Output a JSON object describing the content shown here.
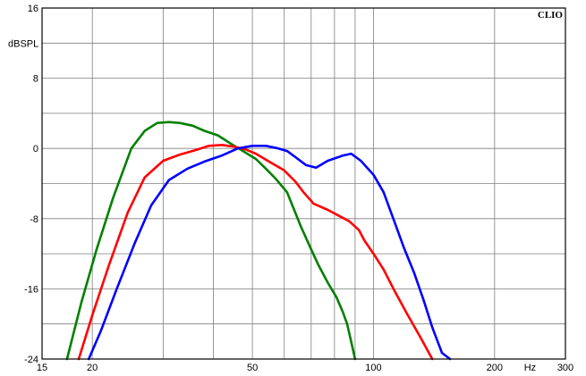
{
  "chart_data": {
    "type": "line",
    "brand": "CLIO",
    "ylabel": "dBSPL",
    "xunit": "Hz",
    "xscale": "log",
    "xlim": [
      15,
      300
    ],
    "ylim": [
      -24,
      16
    ],
    "grid": true,
    "x_gridlines": [
      20,
      30,
      40,
      50,
      60,
      70,
      80,
      90,
      100,
      200
    ],
    "y_gridlines": [
      -20,
      -16,
      -12,
      -8,
      -4,
      0,
      4,
      8,
      12
    ],
    "x_tick_labels": [
      {
        "value": 15,
        "label": "15"
      },
      {
        "value": 20,
        "label": "20"
      },
      {
        "value": 50,
        "label": "50"
      },
      {
        "value": 100,
        "label": "100"
      },
      {
        "value": 200,
        "label": "200"
      },
      {
        "value": 300,
        "label": "300"
      }
    ],
    "y_tick_labels": [
      {
        "value": 16,
        "label": "16"
      },
      {
        "value": 8,
        "label": "8"
      },
      {
        "value": 0,
        "label": "0"
      },
      {
        "value": -8,
        "label": "-8"
      },
      {
        "value": -16,
        "label": "-16"
      },
      {
        "value": -24,
        "label": "-24"
      }
    ],
    "series": [
      {
        "color": "#008000",
        "points": [
          [
            17.3,
            -24
          ],
          [
            18.8,
            -17.5
          ],
          [
            20.5,
            -11.5
          ],
          [
            22.5,
            -5.7
          ],
          [
            25,
            0
          ],
          [
            27,
            2
          ],
          [
            29,
            2.9
          ],
          [
            31,
            3
          ],
          [
            33,
            2.9
          ],
          [
            35.5,
            2.6
          ],
          [
            38,
            2
          ],
          [
            41,
            1.5
          ],
          [
            44,
            0.6
          ],
          [
            47,
            -0.2
          ],
          [
            51,
            -1.2
          ],
          [
            54,
            -2.3
          ],
          [
            57,
            -3.4
          ],
          [
            61,
            -5
          ],
          [
            63,
            -6.6
          ],
          [
            66,
            -8.9
          ],
          [
            70,
            -11.5
          ],
          [
            73,
            -13.3
          ],
          [
            77,
            -15.3
          ],
          [
            81,
            -17
          ],
          [
            84,
            -18.7
          ],
          [
            86,
            -20
          ],
          [
            88,
            -22
          ],
          [
            90,
            -24
          ]
        ]
      },
      {
        "color": "#ff0000",
        "points": [
          [
            18.5,
            -24
          ],
          [
            20,
            -19
          ],
          [
            22,
            -13.3
          ],
          [
            24.5,
            -7.3
          ],
          [
            27,
            -3.3
          ],
          [
            30,
            -1.4
          ],
          [
            33,
            -0.7
          ],
          [
            36,
            -0.2
          ],
          [
            39,
            0.3
          ],
          [
            42,
            0.4
          ],
          [
            45,
            0.2
          ],
          [
            48,
            -0.1
          ],
          [
            51,
            -0.6
          ],
          [
            55,
            -1.5
          ],
          [
            60,
            -2.5
          ],
          [
            64,
            -3.8
          ],
          [
            67,
            -5
          ],
          [
            71,
            -6.3
          ],
          [
            77,
            -7
          ],
          [
            83,
            -7.8
          ],
          [
            87,
            -8.3
          ],
          [
            92,
            -9.3
          ],
          [
            95,
            -10.5
          ],
          [
            100,
            -12
          ],
          [
            106,
            -13.8
          ],
          [
            113,
            -16.3
          ],
          [
            121,
            -18.8
          ],
          [
            130,
            -21.3
          ],
          [
            140,
            -24
          ]
        ]
      },
      {
        "color": "#0000ff",
        "points": [
          [
            19.6,
            -24
          ],
          [
            21,
            -20.8
          ],
          [
            23,
            -16
          ],
          [
            25.5,
            -10.8
          ],
          [
            28,
            -6.5
          ],
          [
            31,
            -3.6
          ],
          [
            34.5,
            -2.3
          ],
          [
            38,
            -1.5
          ],
          [
            42,
            -0.8
          ],
          [
            46,
            0
          ],
          [
            50,
            0.3
          ],
          [
            54,
            0.3
          ],
          [
            58,
            0
          ],
          [
            61,
            -0.3
          ],
          [
            64,
            -1
          ],
          [
            68,
            -1.9
          ],
          [
            72,
            -2.2
          ],
          [
            77,
            -1.4
          ],
          [
            84,
            -0.8
          ],
          [
            88,
            -0.6
          ],
          [
            93,
            -1.4
          ],
          [
            100,
            -3
          ],
          [
            106,
            -5
          ],
          [
            112,
            -8
          ],
          [
            119,
            -11.3
          ],
          [
            126,
            -14.1
          ],
          [
            133,
            -17.2
          ],
          [
            140,
            -20.4
          ],
          [
            148,
            -23.3
          ],
          [
            155,
            -24
          ]
        ]
      }
    ]
  }
}
